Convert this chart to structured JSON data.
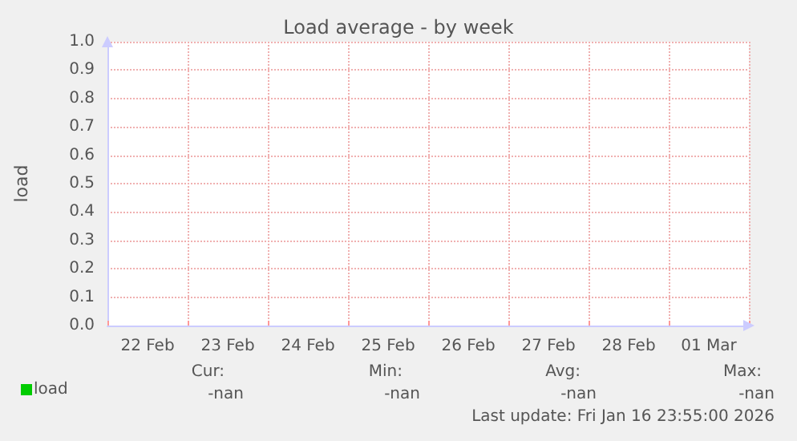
{
  "chart_data": {
    "type": "line",
    "title": "Load average - by week",
    "ylabel": "load",
    "categories": [
      "22 Feb",
      "23 Feb",
      "24 Feb",
      "25 Feb",
      "26 Feb",
      "27 Feb",
      "28 Feb",
      "01 Mar"
    ],
    "series": [
      {
        "name": "load",
        "color": "#00cc00",
        "values": [
          null,
          null,
          null,
          null,
          null,
          null,
          null,
          null
        ]
      }
    ],
    "ylim": [
      0,
      1
    ],
    "yticks": [
      {
        "value": 0,
        "label": "0.0"
      },
      {
        "value": 0.1,
        "label": "0.1"
      },
      {
        "value": 0.2,
        "label": "0.2"
      },
      {
        "value": 0.3,
        "label": "0.3"
      },
      {
        "value": 0.4,
        "label": "0.4"
      },
      {
        "value": 0.5,
        "label": "0.5"
      },
      {
        "value": 0.6,
        "label": "0.6"
      },
      {
        "value": 0.7,
        "label": "0.7"
      },
      {
        "value": 0.8,
        "label": "0.8"
      },
      {
        "value": 0.9,
        "label": "0.9"
      },
      {
        "value": 1,
        "label": "1.0"
      }
    ],
    "grid": true,
    "legend": "bottom left",
    "annotations": [
      "Cur:",
      "-nan",
      "Min:",
      "-nan",
      "Avg:",
      "-nan",
      "Max:",
      "-nan",
      "Last update: Fri Jan 16 23:55:00 2026"
    ]
  }
}
